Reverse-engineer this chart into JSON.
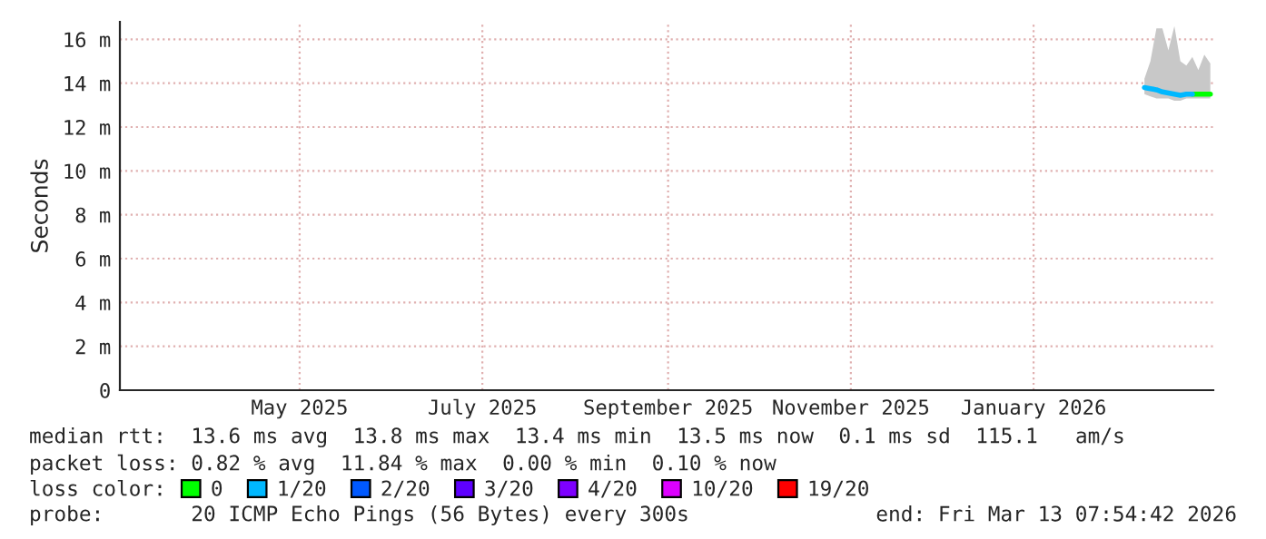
{
  "chart_data": {
    "type": "line",
    "ylabel": "Seconds",
    "x": [
      "2026-02-18",
      "2026-02-20",
      "2026-02-22",
      "2026-02-24",
      "2026-02-26",
      "2026-02-28",
      "2026-03-02",
      "2026-03-04",
      "2026-03-06",
      "2026-03-08",
      "2026-03-10",
      "2026-03-12"
    ],
    "series": [
      {
        "name": "0",
        "color": "#00ff00",
        "values": [
          null,
          null,
          null,
          null,
          null,
          null,
          null,
          null,
          13.5,
          13.5,
          13.5,
          13.5
        ]
      },
      {
        "name": "1/20",
        "color": "#00b8ff",
        "values": [
          13.8,
          13.75,
          13.7,
          13.6,
          13.55,
          13.5,
          13.45,
          13.5,
          13.5,
          null,
          null,
          null
        ],
        "lower": [
          13.5,
          13.4,
          13.3,
          13.3,
          13.3,
          13.2,
          13.2,
          13.3,
          13.3,
          13.3,
          13.3,
          13.3
        ],
        "upper": [
          14.2,
          15.0,
          16.5,
          16.5,
          15.5,
          16.6,
          15.0,
          14.8,
          15.2,
          14.6,
          15.3,
          14.9
        ]
      },
      {
        "name": "2/20",
        "color": "#0059ff",
        "values": [
          null,
          null,
          null,
          null,
          null,
          null,
          null,
          null,
          null,
          null,
          null,
          null
        ]
      },
      {
        "name": "3/20",
        "color": "#5e00ff",
        "values": [
          null,
          null,
          null,
          null,
          null,
          null,
          null,
          null,
          null,
          null,
          null,
          null
        ]
      },
      {
        "name": "4/20",
        "color": "#7e00ff",
        "values": [
          null,
          null,
          null,
          null,
          null,
          null,
          null,
          null,
          null,
          null,
          null,
          null
        ]
      },
      {
        "name": "10/20",
        "color": "#dd00ff",
        "values": [
          null,
          null,
          null,
          null,
          null,
          null,
          null,
          null,
          null,
          null,
          null,
          null
        ]
      },
      {
        "name": "19/20",
        "color": "#ff0000",
        "values": [
          null,
          null,
          null,
          null,
          null,
          null,
          null,
          null,
          null,
          null,
          null,
          null
        ]
      }
    ],
    "legend_title": "loss color:",
    "legend": "bottom",
    "xlim": [
      "2025-03-13",
      "2026-03-13"
    ],
    "xticks": [
      {
        "value": "2025-05-12",
        "label": "May 2025"
      },
      {
        "value": "2025-07-12",
        "label": "July 2025"
      },
      {
        "value": "2025-09-12",
        "label": "September 2025"
      },
      {
        "value": "2025-11-12",
        "label": "November 2025"
      },
      {
        "value": "2026-01-12",
        "label": "January 2026"
      }
    ],
    "ylim": [
      0,
      16.8
    ],
    "yticks": [
      0,
      {
        "value": 2,
        "label": "2 m"
      },
      {
        "value": 4,
        "label": "4 m"
      },
      {
        "value": 6,
        "label": "6 m"
      },
      {
        "value": 8,
        "label": "8 m"
      },
      {
        "value": 10,
        "label": "10 m"
      },
      {
        "value": 12,
        "label": "12 m"
      },
      {
        "value": 14,
        "label": "14 m"
      },
      {
        "value": 16,
        "label": "16 m"
      }
    ],
    "grid": true,
    "annotations": [
      "median rtt:  13.6 ms avg  13.8 ms max  13.4 ms min  13.5 ms now  0.1 ms sd  115.1   am/s",
      "packet loss: 0.82 % avg  11.84 % max  0.00 % min  0.10 % now",
      "probe:       20 ICMP Echo Pings (56 Bytes) every 300s",
      "end: Fri Mar 13 07:54:42 2026"
    ]
  }
}
